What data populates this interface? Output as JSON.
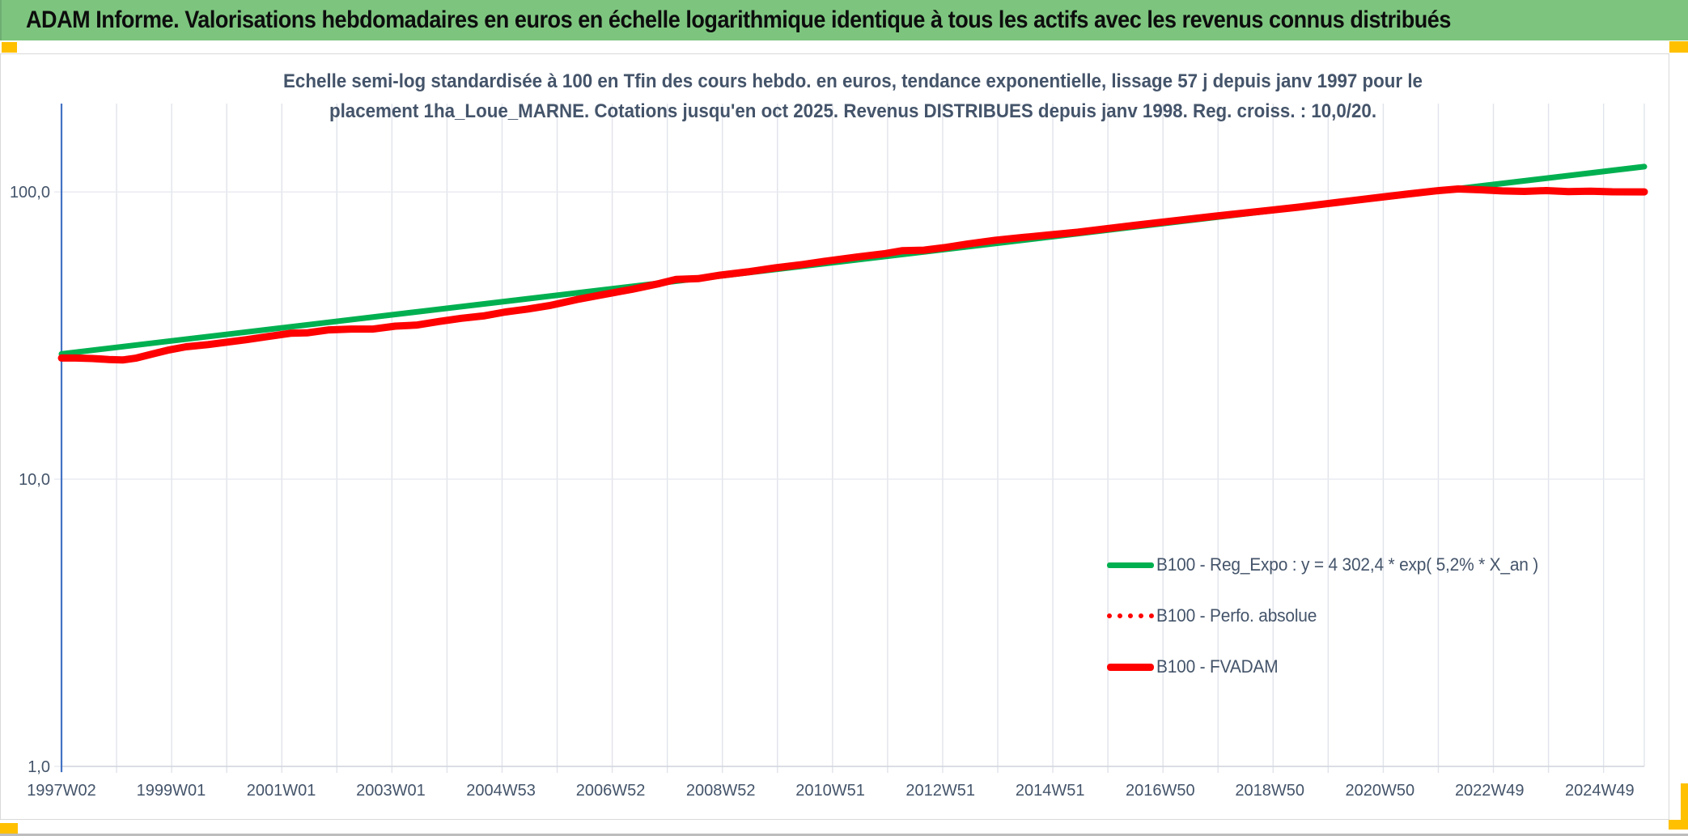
{
  "header": {
    "title": "ADAM Informe. Valorisations hebdomadaires en euros en échelle logarithmique identique à tous les actifs avec les revenus connus distribués"
  },
  "colors": {
    "header_bg": "#7dc57f",
    "accent_orange": "#ffc000",
    "title_text": "#44546a",
    "y_axis_line": "#4472c4",
    "vertical_gridline": "#e0e3ea",
    "horizontal_gridline": "#e7eaf0",
    "bottom_axis_line": "#cfd4dc",
    "series_green": "#00b050",
    "series_red": "#ff0000",
    "panel_border": "#d9d9d9"
  },
  "chart_data": {
    "type": "line",
    "title_line1": "Echelle semi-log standardisée à 100 en Tfin des cours hebdo. en euros, tendance exponentielle, lissage 57 j depuis janv 1997 pour le",
    "title_line2": "placement 1ha_Loue_MARNE. Cotations jusqu'en oct 2025. Revenus DISTRIBUES depuis janv 1998. Reg. croiss. : 10,0/20.",
    "grid": "on",
    "legend_position": "inside-lower-right",
    "y_axis": {
      "scale": "log",
      "range": [
        1,
        203
      ],
      "ticks": [
        {
          "label": "1,0",
          "value": 1
        },
        {
          "label": "10,0",
          "value": 10
        },
        {
          "label": "100,0",
          "value": 100
        }
      ]
    },
    "x_axis": {
      "range_years": [
        1997.04,
        2025.78
      ],
      "gridline_interval_years": 1,
      "ticks": [
        {
          "label": "1997W02",
          "year": 1997.04
        },
        {
          "label": "1999W01",
          "year": 1999.03
        },
        {
          "label": "2001W01",
          "year": 2001.03
        },
        {
          "label": "2003W01",
          "year": 2003.02
        },
        {
          "label": "2004W53",
          "year": 2005.02
        },
        {
          "label": "2006W52",
          "year": 2007.01
        },
        {
          "label": "2008W52",
          "year": 2009.01
        },
        {
          "label": "2010W51",
          "year": 2011.0
        },
        {
          "label": "2012W51",
          "year": 2013.0
        },
        {
          "label": "2014W51",
          "year": 2014.99
        },
        {
          "label": "2016W50",
          "year": 2016.99
        },
        {
          "label": "2018W50",
          "year": 2018.98
        },
        {
          "label": "2020W50",
          "year": 2020.98
        },
        {
          "label": "2022W49",
          "year": 2022.97
        },
        {
          "label": "2024W49",
          "year": 2024.97
        }
      ]
    },
    "series": [
      {
        "name": "B100 - Reg_Expo : y = 4 302,4 * exp( 5,2% *  X_an )",
        "color": "#00b050",
        "style": "solid",
        "stroke_width": 7,
        "points": [
          [
            1997.04,
            27.3
          ],
          [
            2025.78,
            122.5
          ]
        ]
      },
      {
        "name": "B100 - Perfo. absolue",
        "color": "#ff0000",
        "style": "dotted",
        "stroke_width": 5,
        "coincides_with": "B100 - FVADAM",
        "points": []
      },
      {
        "name": "B100 - FVADAM",
        "color": "#ff0000",
        "style": "solid",
        "stroke_width": 9,
        "points": [
          [
            1997.04,
            26.4
          ],
          [
            1997.3,
            26.4
          ],
          [
            1997.6,
            26.3
          ],
          [
            1997.9,
            26.1
          ],
          [
            1998.15,
            26.0
          ],
          [
            1998.4,
            26.4
          ],
          [
            1998.7,
            27.3
          ],
          [
            1999.0,
            28.2
          ],
          [
            1999.3,
            28.9
          ],
          [
            1999.7,
            29.4
          ],
          [
            2000.0,
            29.9
          ],
          [
            2000.4,
            30.6
          ],
          [
            2000.8,
            31.4
          ],
          [
            2001.2,
            32.2
          ],
          [
            2001.5,
            32.3
          ],
          [
            2001.9,
            33.1
          ],
          [
            2002.3,
            33.3
          ],
          [
            2002.7,
            33.3
          ],
          [
            2003.1,
            34.1
          ],
          [
            2003.5,
            34.4
          ],
          [
            2003.9,
            35.4
          ],
          [
            2004.3,
            36.3
          ],
          [
            2004.7,
            37.0
          ],
          [
            2005.1,
            38.2
          ],
          [
            2005.5,
            39.1
          ],
          [
            2005.9,
            40.2
          ],
          [
            2006.4,
            42.2
          ],
          [
            2006.9,
            44.0
          ],
          [
            2007.4,
            45.8
          ],
          [
            2007.9,
            48.0
          ],
          [
            2008.2,
            49.6
          ],
          [
            2008.6,
            49.9
          ],
          [
            2009.0,
            51.3
          ],
          [
            2009.5,
            52.7
          ],
          [
            2010.0,
            54.4
          ],
          [
            2010.5,
            55.9
          ],
          [
            2011.0,
            57.7
          ],
          [
            2011.5,
            59.4
          ],
          [
            2012.0,
            61.0
          ],
          [
            2012.3,
            62.4
          ],
          [
            2012.7,
            62.7
          ],
          [
            2013.1,
            64.1
          ],
          [
            2013.5,
            65.9
          ],
          [
            2014.0,
            67.9
          ],
          [
            2014.5,
            69.4
          ],
          [
            2015.0,
            70.9
          ],
          [
            2015.5,
            72.4
          ],
          [
            2016.0,
            74.4
          ],
          [
            2016.5,
            76.4
          ],
          [
            2017.0,
            78.4
          ],
          [
            2017.5,
            80.4
          ],
          [
            2018.0,
            82.4
          ],
          [
            2018.5,
            84.4
          ],
          [
            2019.0,
            86.4
          ],
          [
            2019.5,
            88.5
          ],
          [
            2020.0,
            90.9
          ],
          [
            2020.5,
            93.4
          ],
          [
            2021.0,
            95.9
          ],
          [
            2021.5,
            98.4
          ],
          [
            2022.0,
            100.9
          ],
          [
            2022.4,
            102.4
          ],
          [
            2022.8,
            101.7
          ],
          [
            2023.2,
            100.8
          ],
          [
            2023.6,
            100.4
          ],
          [
            2024.0,
            101.1
          ],
          [
            2024.4,
            100.2
          ],
          [
            2024.8,
            100.6
          ],
          [
            2025.2,
            100.1
          ],
          [
            2025.78,
            100.0
          ]
        ]
      }
    ]
  }
}
